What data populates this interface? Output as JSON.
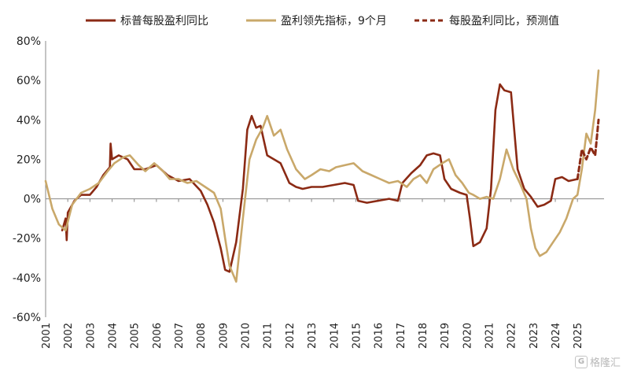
{
  "chart_data": {
    "type": "line",
    "ylim": [
      -60,
      80
    ],
    "yticks": [
      -60,
      -40,
      -20,
      0,
      20,
      40,
      60,
      80
    ],
    "ytick_labels": [
      "-60%",
      "-40%",
      "-20%",
      "0%",
      "20%",
      "40%",
      "60%",
      "80%"
    ],
    "xlim": [
      2001,
      2026.2
    ],
    "xticks": [
      2001,
      2002,
      2003,
      2004,
      2005,
      2006,
      2007,
      2008,
      2009,
      2010,
      2011,
      2012,
      2013,
      2014,
      2015,
      2016,
      2017,
      2018,
      2019,
      2020,
      2021,
      2022,
      2023,
      2024,
      2025
    ],
    "xtick_labels": [
      "2001",
      "2002",
      "2003",
      "2004",
      "2005",
      "2006",
      "2007",
      "2008",
      "2009",
      "2010",
      "2011",
      "2012",
      "2013",
      "2014",
      "2015",
      "2016",
      "2017",
      "2018",
      "2019",
      "2020",
      "2021",
      "2022",
      "2023",
      "2024",
      "2025"
    ],
    "legend_position": "top",
    "series": [
      {
        "name": "标普每股盈利同比",
        "color": "#8b2a14",
        "style": "solid",
        "x": [
          2001.75,
          2001.9,
          2001.95,
          2002.0,
          2002.3,
          2002.6,
          2003.0,
          2003.3,
          2003.6,
          2003.9,
          2003.93,
          2004.0,
          2004.3,
          2004.7,
          2005.0,
          2005.5,
          2006.0,
          2006.5,
          2007.0,
          2007.5,
          2008.0,
          2008.3,
          2008.6,
          2008.9,
          2009.1,
          2009.3,
          2009.6,
          2009.9,
          2010.1,
          2010.3,
          2010.5,
          2010.7,
          2011.0,
          2011.3,
          2011.6,
          2012.0,
          2012.3,
          2012.6,
          2013.0,
          2013.5,
          2014.0,
          2014.5,
          2014.9,
          2015.1,
          2015.5,
          2016.0,
          2016.5,
          2016.9,
          2017.1,
          2017.5,
          2017.9,
          2018.2,
          2018.5,
          2018.8,
          2019.0,
          2019.3,
          2019.7,
          2020.0,
          2020.15,
          2020.3,
          2020.6,
          2020.9,
          2021.1,
          2021.3,
          2021.5,
          2021.7,
          2022.0,
          2022.3,
          2022.6,
          2022.9,
          2023.2,
          2023.5,
          2023.8,
          2024.0,
          2024.3,
          2024.6,
          2025.0
        ],
        "values": [
          -16,
          -10,
          -21,
          -7,
          -1,
          2,
          2,
          6,
          12,
          16,
          28,
          20,
          22,
          20,
          15,
          15,
          17,
          12,
          9,
          10,
          4,
          -3,
          -12,
          -25,
          -36,
          -37,
          -22,
          5,
          35,
          42,
          36,
          37,
          22,
          20,
          18,
          8,
          6,
          5,
          6,
          6,
          7,
          8,
          7,
          -1,
          -2,
          -1,
          0,
          -1,
          8,
          13,
          17,
          22,
          23,
          22,
          10,
          5,
          3,
          2,
          -10,
          -24,
          -22,
          -15,
          5,
          45,
          58,
          55,
          54,
          15,
          5,
          1,
          -4,
          -3,
          -1,
          10,
          11,
          9,
          10
        ]
      },
      {
        "name": "盈利领先指标，9个月",
        "color": "#c9a86a",
        "style": "solid",
        "x": [
          2001.0,
          2001.3,
          2001.6,
          2001.9,
          2002.2,
          2002.6,
          2003.0,
          2003.4,
          2003.8,
          2004.1,
          2004.5,
          2004.8,
          2005.2,
          2005.5,
          2005.9,
          2006.3,
          2006.6,
          2007.0,
          2007.4,
          2007.8,
          2008.2,
          2008.6,
          2008.9,
          2009.1,
          2009.3,
          2009.6,
          2009.9,
          2010.2,
          2010.5,
          2010.8,
          2011.0,
          2011.3,
          2011.6,
          2011.9,
          2012.3,
          2012.7,
          2013.0,
          2013.4,
          2013.8,
          2014.1,
          2014.5,
          2014.9,
          2015.3,
          2015.7,
          2016.1,
          2016.5,
          2016.9,
          2017.3,
          2017.6,
          2017.9,
          2018.2,
          2018.5,
          2018.9,
          2019.2,
          2019.5,
          2019.8,
          2020.1,
          2020.3,
          2020.6,
          2020.9,
          2021.2,
          2021.5,
          2021.8,
          2022.1,
          2022.4,
          2022.7,
          2022.9,
          2023.1,
          2023.3,
          2023.6,
          2023.9,
          2024.2,
          2024.5,
          2024.8,
          2025.0,
          2025.2,
          2025.4,
          2025.6,
          2025.8,
          2025.95
        ],
        "values": [
          9,
          -5,
          -13,
          -16,
          -3,
          3,
          5,
          8,
          14,
          18,
          21,
          22,
          17,
          14,
          18,
          14,
          10,
          10,
          8,
          9,
          6,
          3,
          -5,
          -20,
          -34,
          -42,
          -10,
          20,
          30,
          36,
          42,
          32,
          35,
          25,
          15,
          10,
          12,
          15,
          14,
          16,
          17,
          18,
          14,
          12,
          10,
          8,
          9,
          6,
          10,
          12,
          8,
          15,
          18,
          20,
          12,
          8,
          3,
          2,
          0,
          1,
          0,
          10,
          25,
          15,
          8,
          0,
          -15,
          -25,
          -29,
          -27,
          -22,
          -17,
          -10,
          0,
          2,
          15,
          33,
          28,
          45,
          65
        ]
      },
      {
        "name": "每股盈利同比，预测值",
        "color": "#8b2a14",
        "style": "dashed",
        "x": [
          2025.0,
          2025.2,
          2025.4,
          2025.6,
          2025.8,
          2025.95
        ],
        "values": [
          10,
          25,
          20,
          26,
          22,
          40
        ]
      }
    ]
  },
  "watermark": {
    "text": "格隆汇",
    "logo": "G"
  }
}
